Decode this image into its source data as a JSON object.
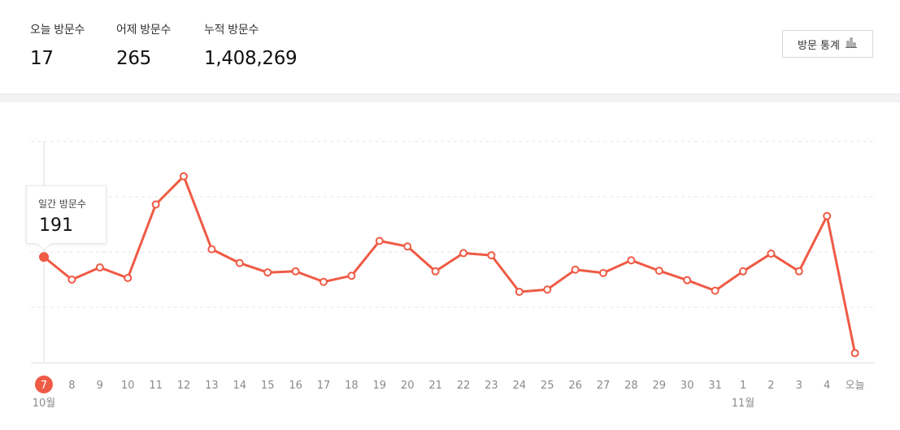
{
  "header": {
    "today": {
      "label": "오늘 방문수",
      "value": "17"
    },
    "yesterday": {
      "label": "어제 방문수",
      "value": "265"
    },
    "total": {
      "label": "누적 방문수",
      "value": "1,408,269"
    },
    "stats_button": {
      "label": "방문 통계",
      "icon": "bar-chart-icon"
    }
  },
  "colors": {
    "line": "#ef5a45",
    "grid": "#e6e6e6",
    "tick_text": "#8a8a8a",
    "axis": "#e2e2e2"
  },
  "tooltip": {
    "label": "일간 방문수",
    "value": "191"
  },
  "chart_data": {
    "type": "line",
    "categories": [
      "7",
      "8",
      "9",
      "10",
      "11",
      "12",
      "13",
      "14",
      "15",
      "16",
      "17",
      "18",
      "19",
      "20",
      "21",
      "22",
      "23",
      "24",
      "25",
      "26",
      "27",
      "28",
      "29",
      "30",
      "31",
      "1",
      "2",
      "3",
      "4",
      "오늘"
    ],
    "month_labels": [
      {
        "index": 0,
        "label": "10월"
      },
      {
        "index": 25,
        "label": "11월"
      }
    ],
    "series": [
      {
        "values": [
          191,
          150,
          172,
          153,
          286,
          337,
          205,
          180,
          163,
          165,
          146,
          157,
          220,
          210,
          165,
          198,
          194,
          128,
          132,
          168,
          162,
          185,
          166,
          149,
          130,
          165,
          197,
          165,
          265,
          17
        ]
      }
    ],
    "ylim": [
      0,
      400
    ],
    "grid": true,
    "highlight_index": 0
  }
}
